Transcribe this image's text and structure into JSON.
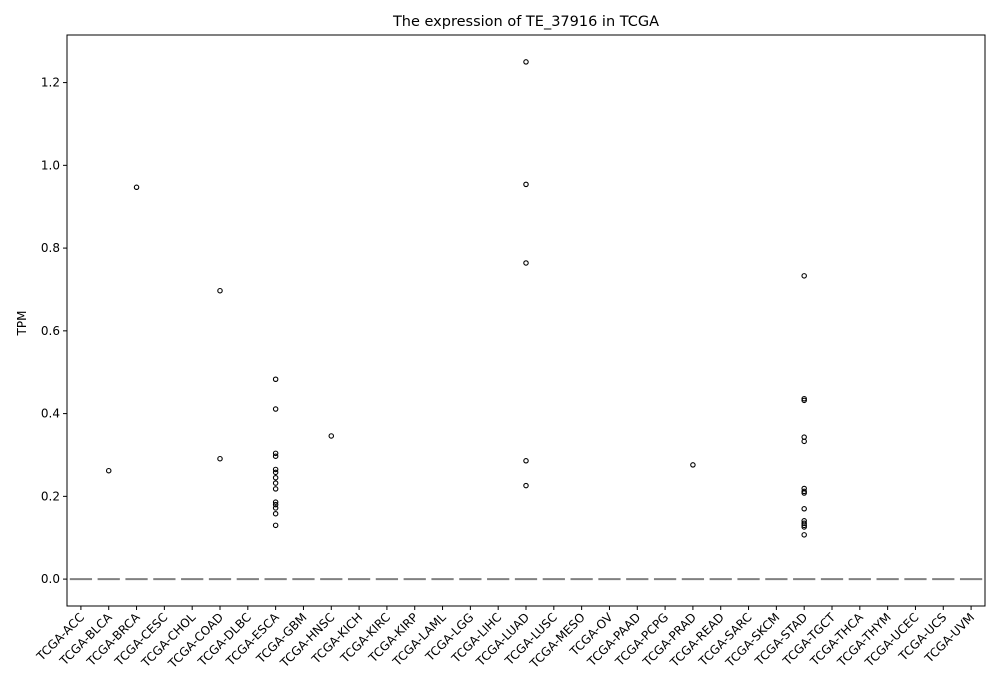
{
  "chart_data": {
    "type": "box",
    "title": "The expression of TE_37916 in TCGA",
    "xlabel": "",
    "ylabel": "TPM",
    "ylim": [
      -0.065,
      1.315
    ],
    "yticks": [
      0.0,
      0.2,
      0.4,
      0.6,
      0.8,
      1.0,
      1.2
    ],
    "ytick_labels": [
      "0.0",
      "0.2",
      "0.4",
      "0.6",
      "0.8",
      "1.0",
      "1.2"
    ],
    "grid": false,
    "legend": "none",
    "categories": [
      "TCGA-ACC",
      "TCGA-BLCA",
      "TCGA-BRCA",
      "TCGA-CESC",
      "TCGA-CHOL",
      "TCGA-COAD",
      "TCGA-DLBC",
      "TCGA-ESCA",
      "TCGA-GBM",
      "TCGA-HNSC",
      "TCGA-KICH",
      "TCGA-KIRC",
      "TCGA-KIRP",
      "TCGA-LAML",
      "TCGA-LGG",
      "TCGA-LIHC",
      "TCGA-LUAD",
      "TCGA-LUSC",
      "TCGA-MESO",
      "TCGA-OV",
      "TCGA-PAAD",
      "TCGA-PCPG",
      "TCGA-PRAD",
      "TCGA-READ",
      "TCGA-SARC",
      "TCGA-SKCM",
      "TCGA-STAD",
      "TCGA-TGCT",
      "TCGA-THCA",
      "TCGA-THYM",
      "TCGA-UCEC",
      "TCGA-UCS",
      "TCGA-UVM"
    ],
    "median": [
      0,
      0,
      0,
      0,
      0,
      0,
      0,
      0,
      0,
      0,
      0,
      0,
      0,
      0,
      0,
      0,
      0,
      0,
      0,
      0,
      0,
      0,
      0,
      0,
      0,
      0,
      0,
      0,
      0,
      0,
      0,
      0,
      0
    ],
    "outliers": [
      [],
      [
        0.262
      ],
      [
        0.947
      ],
      [],
      [],
      [
        0.697,
        0.291
      ],
      [],
      [
        0.483,
        0.411,
        0.304,
        0.297,
        0.265,
        0.258,
        0.245,
        0.232,
        0.218,
        0.186,
        0.18,
        0.172,
        0.158,
        0.13
      ],
      [],
      [
        0.346
      ],
      [],
      [],
      [],
      [],
      [],
      [],
      [
        1.25,
        0.954,
        0.764,
        0.286,
        0.226
      ],
      [],
      [],
      [],
      [],
      [],
      [
        0.276
      ],
      [],
      [],
      [],
      [
        0.733,
        0.436,
        0.432,
        0.343,
        0.333,
        0.219,
        0.212,
        0.208,
        0.17,
        0.141,
        0.135,
        0.13,
        0.126,
        0.107
      ],
      [],
      [],
      [],
      [],
      [],
      []
    ],
    "colors": {
      "median_line": "#808080",
      "outlier_stroke": "#000000",
      "axis": "#000000"
    }
  }
}
